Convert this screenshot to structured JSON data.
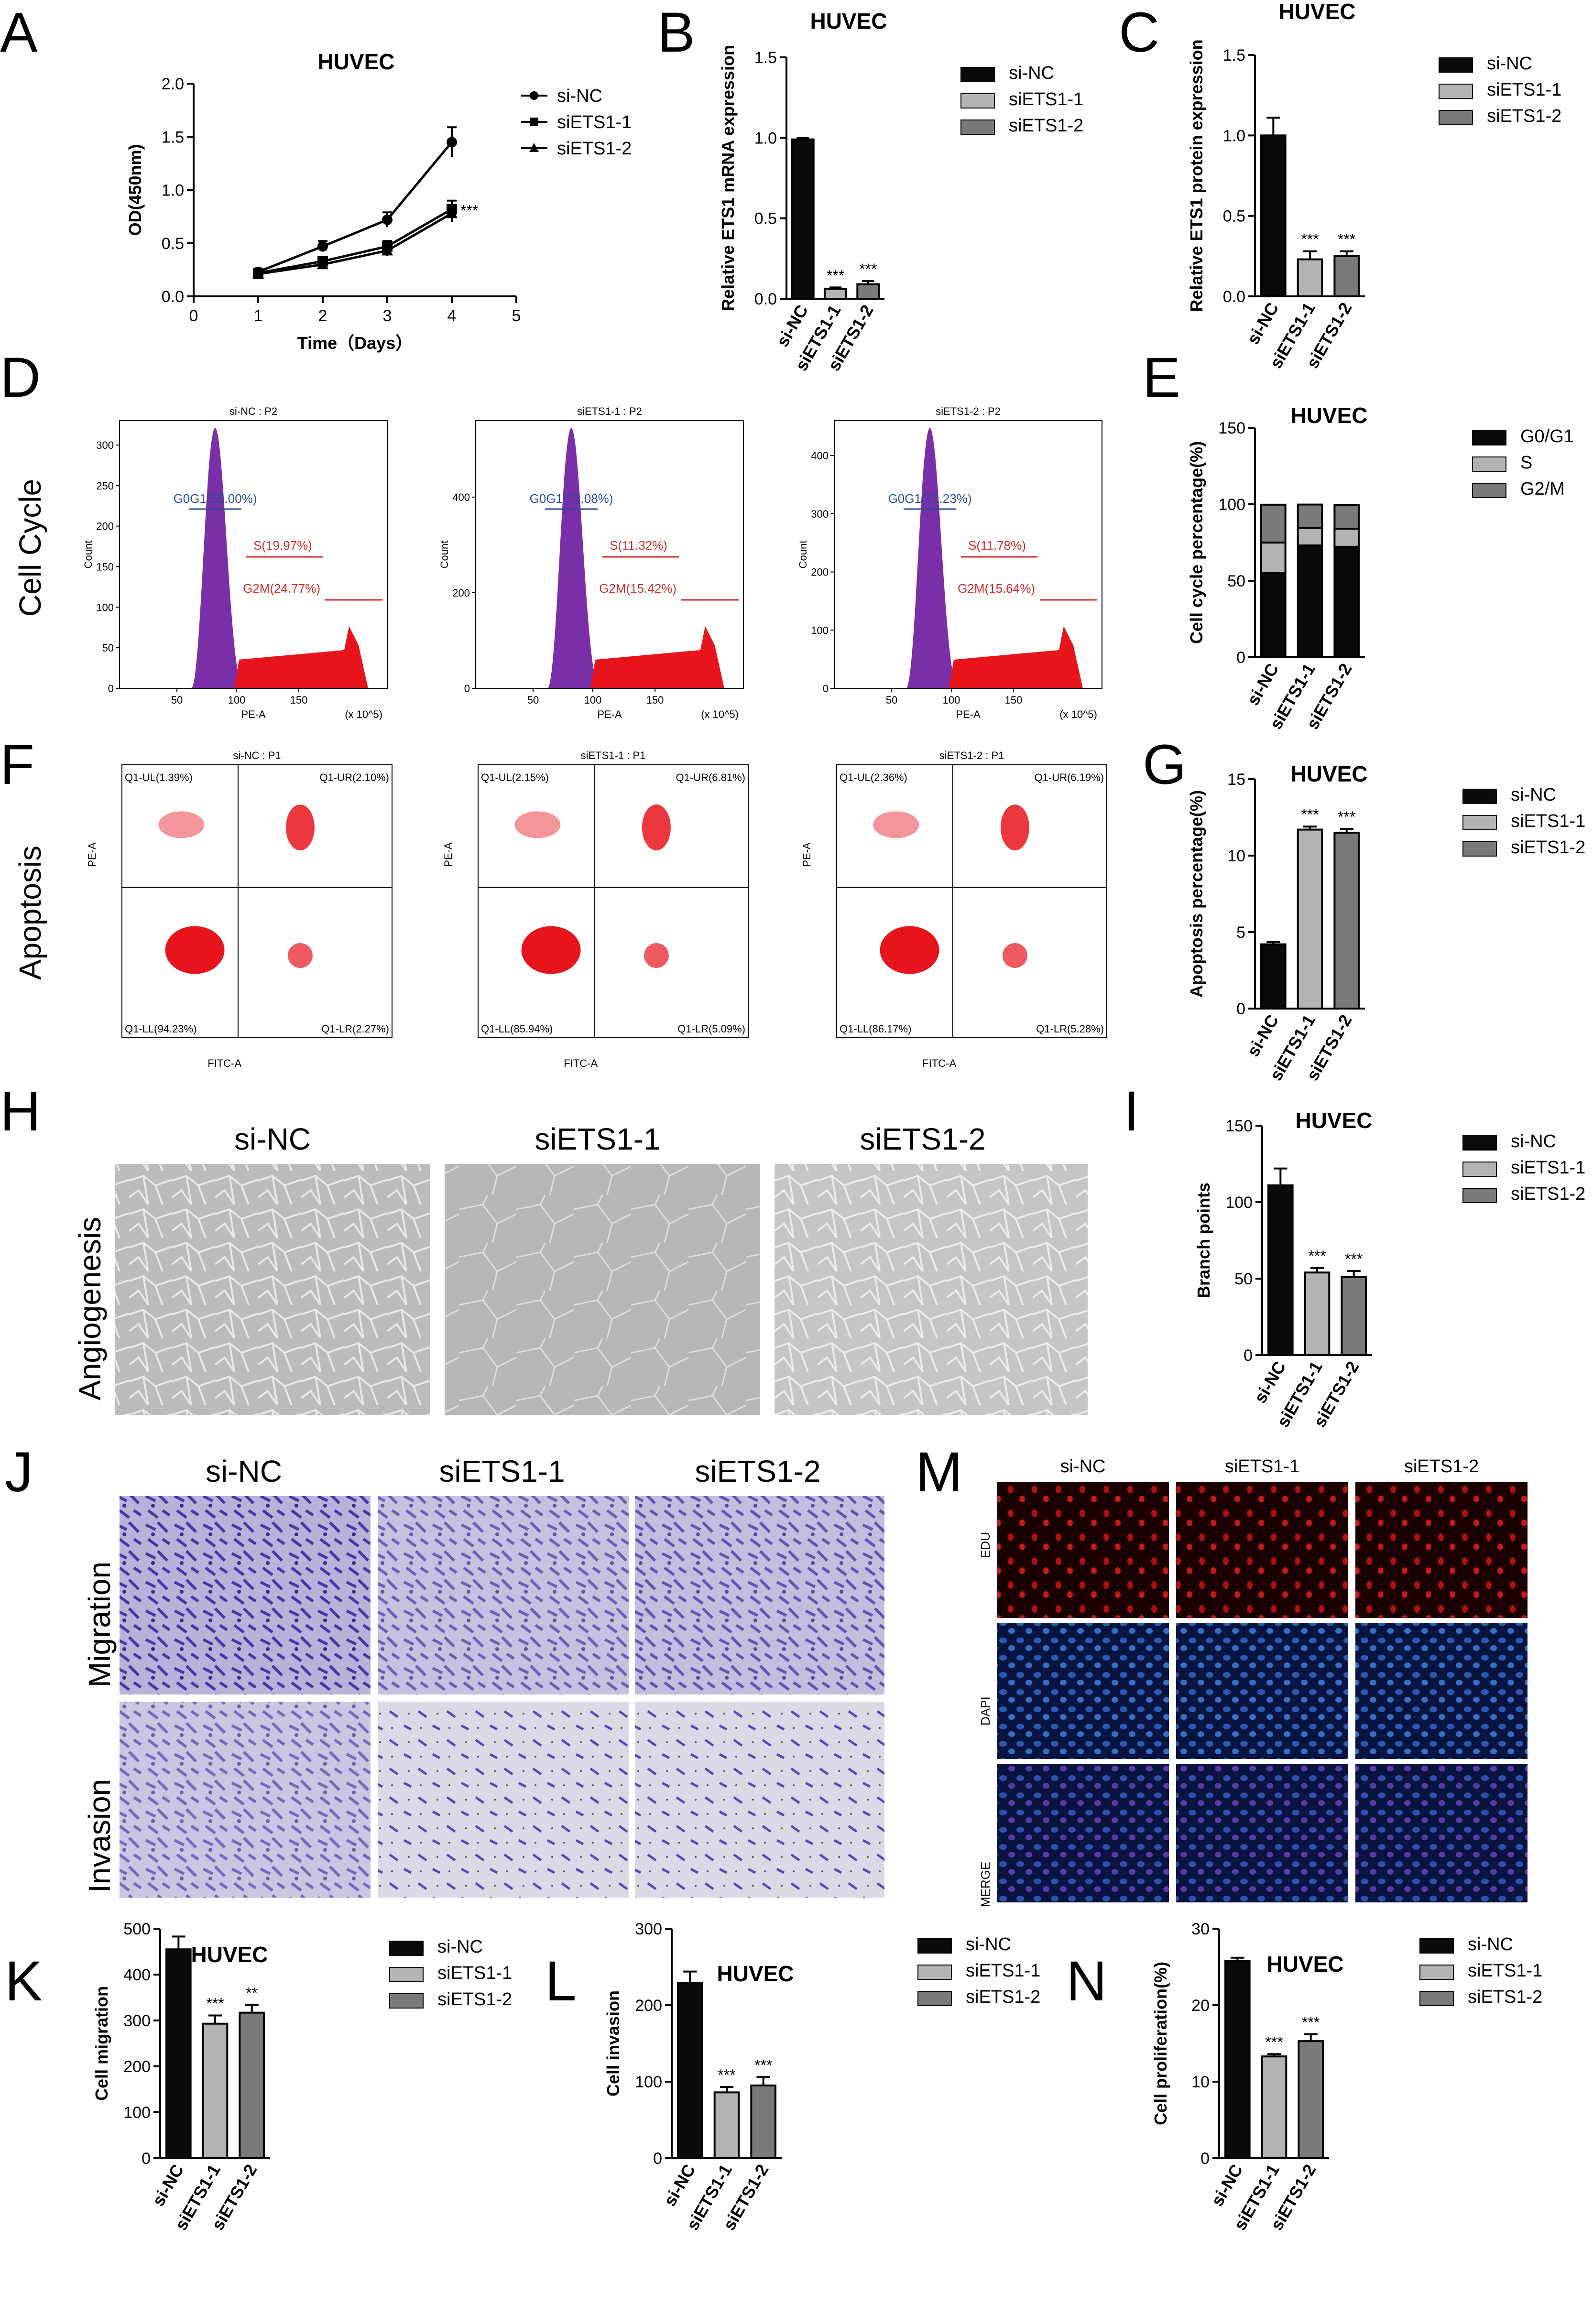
{
  "colors": {
    "si_nc": "#0a0a0a",
    "siets1_1": "#b3b3b3",
    "siets1_2": "#7a7a7a",
    "hist_purple": "#7a2fa8",
    "hist_red": "#e8141c",
    "gate_blue": "#2c4aa0",
    "gate_red": "#d42c2c",
    "dot_red": "#e8141c"
  },
  "side_labels": {
    "cell_cycle": "Cell Cycle",
    "apoptosis": "Apoptosis",
    "angiogenesis": "Angiogenesis",
    "migration": "Migration",
    "invasion": "Invasion",
    "edu": "EDU",
    "dapi": "DAPI",
    "merge": "MERGE"
  },
  "panel_letters": {
    "A": "A",
    "B": "B",
    "C": "C",
    "D": "D",
    "E": "E",
    "F": "F",
    "G": "G",
    "H": "H",
    "I": "I",
    "J": "J",
    "K": "K",
    "L": "L",
    "M": "M",
    "N": "N"
  },
  "image_panels": {
    "H": {
      "conditions": [
        "si-NC",
        "siETS1-1",
        "siETS1-2"
      ]
    },
    "J": {
      "conditions": [
        "si-NC",
        "siETS1-1",
        "siETS1-2"
      ]
    },
    "M": {
      "conditions": [
        "si-NC",
        "siETS1-1",
        "siETS1-2"
      ]
    }
  },
  "flow_cycle": [
    {
      "title": "si-NC : P2",
      "ylabel": "Count",
      "xlabel": "PE-A",
      "xunit": "(x 10^5)",
      "yticks": [
        "0",
        "50",
        "100",
        "150",
        "200",
        "250",
        "300"
      ],
      "ymax": 330,
      "xticks": [
        "50",
        "100",
        "150"
      ],
      "g0g1": "G0G1(55.00%)",
      "s": "S(19.97%)",
      "g2m": "G2M(24.77%)"
    },
    {
      "title": "siETS1-1 : P2",
      "ylabel": "Count",
      "xlabel": "PE-A",
      "xunit": "(x 10^5)",
      "yticks": [
        "0",
        "200",
        "400"
      ],
      "ymax": 560,
      "xticks": [
        "50",
        "100",
        "150"
      ],
      "g0g1": "G0G1(73.08%)",
      "s": "S(11.32%)",
      "g2m": "G2M(15.42%)"
    },
    {
      "title": "siETS1-2 : P2",
      "ylabel": "Count",
      "xlabel": "PE-A",
      "xunit": "(x 10^5)",
      "yticks": [
        "0",
        "100",
        "200",
        "300",
        "400"
      ],
      "ymax": 460,
      "xticks": [
        "50",
        "100",
        "150"
      ],
      "g0g1": "G0G1(72.23%)",
      "s": "S(11.78%)",
      "g2m": "G2M(15.64%)"
    }
  ],
  "flow_apop": [
    {
      "title": "si-NC : P1",
      "ylabel": "PE-A",
      "xlabel": "FITC-A",
      "ul": "Q1-UL(1.39%)",
      "ur": "Q1-UR(2.10%)",
      "ll": "Q1-LL(94.23%)",
      "lr": "Q1-LR(2.27%)"
    },
    {
      "title": "siETS1-1 : P1",
      "ylabel": "PE-A",
      "xlabel": "FITC-A",
      "ul": "Q1-UL(2.15%)",
      "ur": "Q1-UR(6.81%)",
      "ll": "Q1-LL(85.94%)",
      "lr": "Q1-LR(5.09%)"
    },
    {
      "title": "siETS1-2 : P1",
      "ylabel": "PE-A",
      "xlabel": "FITC-A",
      "ul": "Q1-UL(2.36%)",
      "ur": "Q1-UR(6.19%)",
      "ll": "Q1-LL(86.17%)",
      "lr": "Q1-LR(5.28%)"
    }
  ],
  "chart_data": [
    {
      "id": "A",
      "type": "line",
      "title": "HUVEC",
      "xlabel": "Time（Days）",
      "ylabel": "OD(450nm)",
      "x": [
        1,
        2,
        3,
        4
      ],
      "xlim": [
        0,
        5
      ],
      "ylim": [
        0,
        2.0
      ],
      "xticks": [
        "0",
        "1",
        "2",
        "3",
        "4",
        "5"
      ],
      "yticks": [
        "0.0",
        "0.5",
        "1.0",
        "1.5",
        "2.0"
      ],
      "series": [
        {
          "name": "si-NC",
          "marker": "circle",
          "values": [
            0.23,
            0.47,
            0.72,
            1.45
          ],
          "err": [
            0.03,
            0.05,
            0.07,
            0.14
          ]
        },
        {
          "name": "siETS1-1",
          "marker": "square",
          "values": [
            0.22,
            0.33,
            0.47,
            0.82
          ],
          "err": [
            0.03,
            0.04,
            0.05,
            0.08
          ]
        },
        {
          "name": "siETS1-2",
          "marker": "triangle",
          "values": [
            0.21,
            0.3,
            0.43,
            0.78
          ],
          "err": [
            0.03,
            0.04,
            0.05,
            0.08
          ]
        }
      ],
      "annotation": "***",
      "legend": "top-right"
    },
    {
      "id": "B",
      "type": "bar",
      "title": "HUVEC",
      "ylabel": "Relative ETS1 mRNA expression",
      "categories": [
        "si-NC",
        "siETS1-1",
        "siETS1-2"
      ],
      "values": [
        0.99,
        0.06,
        0.09
      ],
      "err": [
        0.01,
        0.01,
        0.02
      ],
      "sig": [
        "",
        "***",
        "***"
      ],
      "ylim": [
        0,
        1.5
      ],
      "yticks": [
        "0.0",
        "0.5",
        "1.0",
        "1.5"
      ],
      "legend": "right"
    },
    {
      "id": "C",
      "type": "bar",
      "title": "HUVEC",
      "ylabel": "Relative ETS1 protein expression",
      "categories": [
        "si-NC",
        "siETS1-1",
        "siETS1-2"
      ],
      "values": [
        1.0,
        0.23,
        0.25
      ],
      "err": [
        0.11,
        0.05,
        0.03
      ],
      "sig": [
        "",
        "***",
        "***"
      ],
      "ylim": [
        0,
        1.5
      ],
      "yticks": [
        "0.0",
        "0.5",
        "1.0",
        "1.5"
      ],
      "legend": "right"
    },
    {
      "id": "E",
      "type": "bar",
      "stacked": true,
      "title": "HUVEC",
      "ylabel": "Cell cycle percentage(%)",
      "categories": [
        "si-NC",
        "siETS1-1",
        "siETS1-2"
      ],
      "series": [
        {
          "name": "G0/G1",
          "values": [
            55.0,
            73.08,
            72.23
          ]
        },
        {
          "name": "S",
          "values": [
            19.97,
            11.32,
            11.78
          ]
        },
        {
          "name": "G2/M",
          "values": [
            24.77,
            15.42,
            15.64
          ]
        }
      ],
      "ylim": [
        0,
        150
      ],
      "yticks": [
        "0",
        "50",
        "100",
        "150"
      ],
      "legend": "right"
    },
    {
      "id": "G",
      "type": "bar",
      "title": "HUVEC",
      "ylabel": "Apoptosis percentage(%)",
      "categories": [
        "si-NC",
        "siETS1-1",
        "siETS1-2"
      ],
      "values": [
        4.2,
        11.7,
        11.5
      ],
      "err": [
        0.15,
        0.2,
        0.25
      ],
      "sig": [
        "",
        "***",
        "***"
      ],
      "ylim": [
        0,
        15
      ],
      "yticks": [
        "0",
        "5",
        "10",
        "15"
      ],
      "legend": "right"
    },
    {
      "id": "I",
      "type": "bar",
      "title": "HUVEC",
      "ylabel": "Branch points",
      "categories": [
        "si-NC",
        "siETS1-1",
        "siETS1-2"
      ],
      "values": [
        111,
        54,
        51
      ],
      "err": [
        11,
        3,
        4
      ],
      "sig": [
        "",
        "***",
        "***"
      ],
      "ylim": [
        0,
        150
      ],
      "yticks": [
        "0",
        "50",
        "100",
        "150"
      ],
      "legend": "right"
    },
    {
      "id": "K",
      "type": "bar",
      "title": "HUVEC",
      "ylabel": "Cell migration",
      "categories": [
        "si-NC",
        "siETS1-1",
        "siETS1-2"
      ],
      "values": [
        455,
        293,
        317
      ],
      "err": [
        28,
        18,
        17
      ],
      "sig": [
        "",
        "***",
        "**"
      ],
      "ylim": [
        0,
        500
      ],
      "yticks": [
        "0",
        "100",
        "200",
        "300",
        "400",
        "500"
      ],
      "legend": "right"
    },
    {
      "id": "L",
      "type": "bar",
      "title": "HUVEC",
      "ylabel": "Cell invasion",
      "categories": [
        "si-NC",
        "siETS1-1",
        "siETS1-2"
      ],
      "values": [
        229,
        86,
        95
      ],
      "err": [
        15,
        7,
        11
      ],
      "sig": [
        "",
        "***",
        "***"
      ],
      "ylim": [
        0,
        300
      ],
      "yticks": [
        "0",
        "100",
        "200",
        "300"
      ],
      "legend": "right"
    },
    {
      "id": "N",
      "type": "bar",
      "title": "HUVEC",
      "ylabel": "Cell proliferation(%)",
      "categories": [
        "si-NC",
        "siETS1-1",
        "siETS1-2"
      ],
      "values": [
        25.8,
        13.3,
        15.3
      ],
      "err": [
        0.4,
        0.3,
        0.9
      ],
      "sig": [
        "",
        "***",
        "***"
      ],
      "ylim": [
        0,
        30
      ],
      "yticks": [
        "0",
        "10",
        "20",
        "30"
      ],
      "legend": "right"
    }
  ]
}
